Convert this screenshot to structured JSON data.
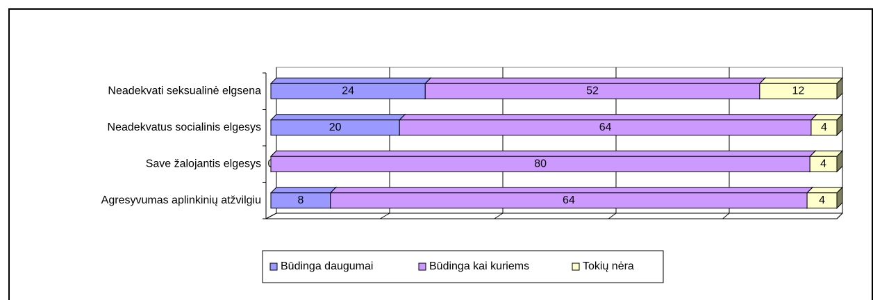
{
  "chart_data": {
    "type": "bar_100_stacked_3d",
    "categories": [
      "Neadekvati seksualinė elgsena",
      "Neadekvatus socialinis elgesys",
      "Save žalojantis elgesys",
      "Agresyvumas aplinkinių atžvilgiu"
    ],
    "series": [
      {
        "name": "Būdinga daugumai",
        "color": "#9999ff",
        "values": [
          24,
          20,
          0,
          8
        ]
      },
      {
        "name": "Būdinga kai kuriems",
        "color": "#cc99ff",
        "values": [
          52,
          64,
          80,
          64
        ]
      },
      {
        "name": "Tokių nėra",
        "color": "#ffffcc",
        "values": [
          12,
          4,
          4,
          4
        ]
      }
    ],
    "xlim": [
      0,
      100
    ],
    "xticks": [
      0,
      20,
      40,
      60,
      80,
      100
    ],
    "grid": true,
    "legend": "bottom"
  }
}
